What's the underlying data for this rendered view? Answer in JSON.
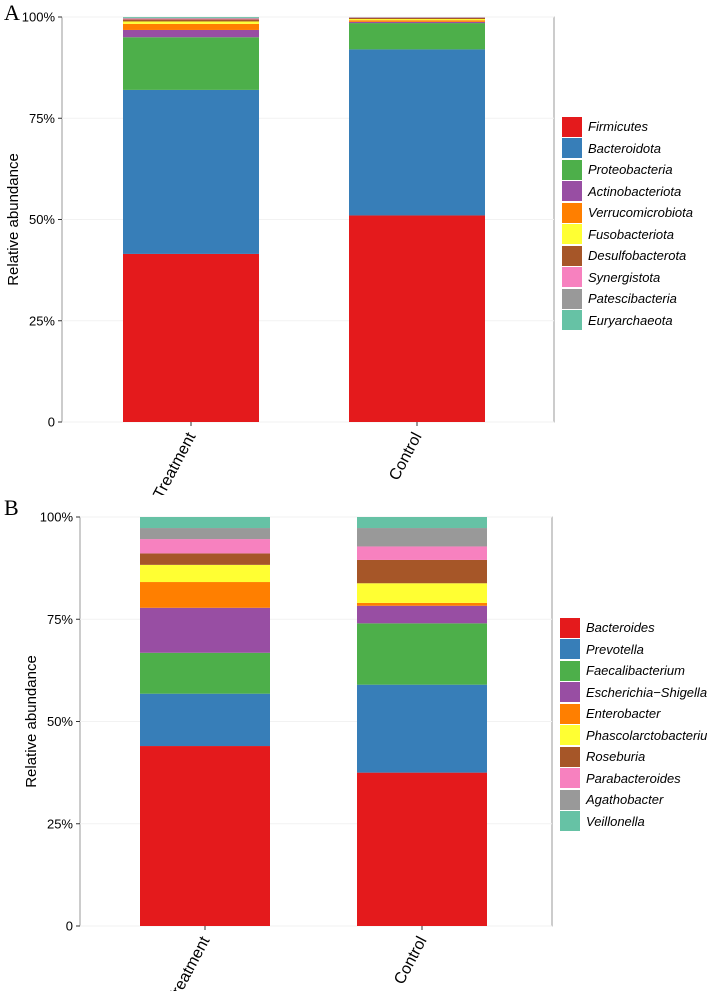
{
  "chart_data": [
    {
      "panel_label": "A",
      "type": "bar",
      "stacked": true,
      "ylabel": "Relative abundance",
      "xlabel": "",
      "ylim": [
        0,
        100
      ],
      "yticks": [
        0,
        25,
        50,
        75,
        100
      ],
      "ytick_labels": [
        "0",
        "25%",
        "50%",
        "75%",
        "100%"
      ],
      "categories": [
        "Treatment",
        "Control"
      ],
      "series": [
        {
          "name": "Firmicutes",
          "color": "#E41A1C",
          "values": [
            41.5,
            51.0
          ]
        },
        {
          "name": "Bacteroidota",
          "color": "#377EB8",
          "values": [
            40.5,
            41.0
          ]
        },
        {
          "name": "Proteobacteria",
          "color": "#4DAF4A",
          "values": [
            13.0,
            6.5
          ]
        },
        {
          "name": "Actinobacteriota",
          "color": "#984EA3",
          "values": [
            1.8,
            0.3
          ]
        },
        {
          "name": "Verrucomicrobiota",
          "color": "#FF7F00",
          "values": [
            1.5,
            0.4
          ]
        },
        {
          "name": "Fusobacteriota",
          "color": "#FFFF33",
          "values": [
            0.6,
            0.3
          ]
        },
        {
          "name": "Desulfobacterota",
          "color": "#A65628",
          "values": [
            0.5,
            0.3
          ]
        },
        {
          "name": "Synergistota",
          "color": "#F781BF",
          "values": [
            0.2,
            0.1
          ]
        },
        {
          "name": "Patescibacteria",
          "color": "#999999",
          "values": [
            0.2,
            0.05
          ]
        },
        {
          "name": "Euryarchaeota",
          "color": "#66C2A5",
          "values": [
            0.2,
            0.05
          ]
        }
      ],
      "legend_position": "right"
    },
    {
      "panel_label": "B",
      "type": "bar",
      "stacked": true,
      "ylabel": "Relative abundance",
      "xlabel": "",
      "ylim": [
        0,
        100
      ],
      "yticks": [
        0,
        25,
        50,
        75,
        100
      ],
      "ytick_labels": [
        "0",
        "25%",
        "50%",
        "75%",
        "100%"
      ],
      "categories": [
        "Treatment",
        "Control"
      ],
      "series": [
        {
          "name": "Bacteroides",
          "color": "#E41A1C",
          "values": [
            44.0,
            37.5
          ]
        },
        {
          "name": "Prevotella",
          "color": "#377EB8",
          "values": [
            12.8,
            21.5
          ]
        },
        {
          "name": "Faecalibacterium",
          "color": "#4DAF4A",
          "values": [
            10.0,
            15.0
          ]
        },
        {
          "name": "Escherichia−Shigella",
          "color": "#984EA3",
          "values": [
            11.0,
            4.3
          ]
        },
        {
          "name": "Enterobacter",
          "color": "#FF7F00",
          "values": [
            6.3,
            0.7
          ]
        },
        {
          "name": "Phascolarctobacterium",
          "color": "#FFFF33",
          "values": [
            4.2,
            4.8
          ]
        },
        {
          "name": "Roseburia",
          "color": "#A65628",
          "values": [
            2.8,
            5.7
          ]
        },
        {
          "name": "Parabacteroides",
          "color": "#F781BF",
          "values": [
            3.5,
            3.3
          ]
        },
        {
          "name": "Agathobacter",
          "color": "#999999",
          "values": [
            2.7,
            4.5
          ]
        },
        {
          "name": "Veillonella",
          "color": "#66C2A5",
          "values": [
            2.7,
            2.7
          ]
        }
      ],
      "legend_position": "right"
    }
  ]
}
